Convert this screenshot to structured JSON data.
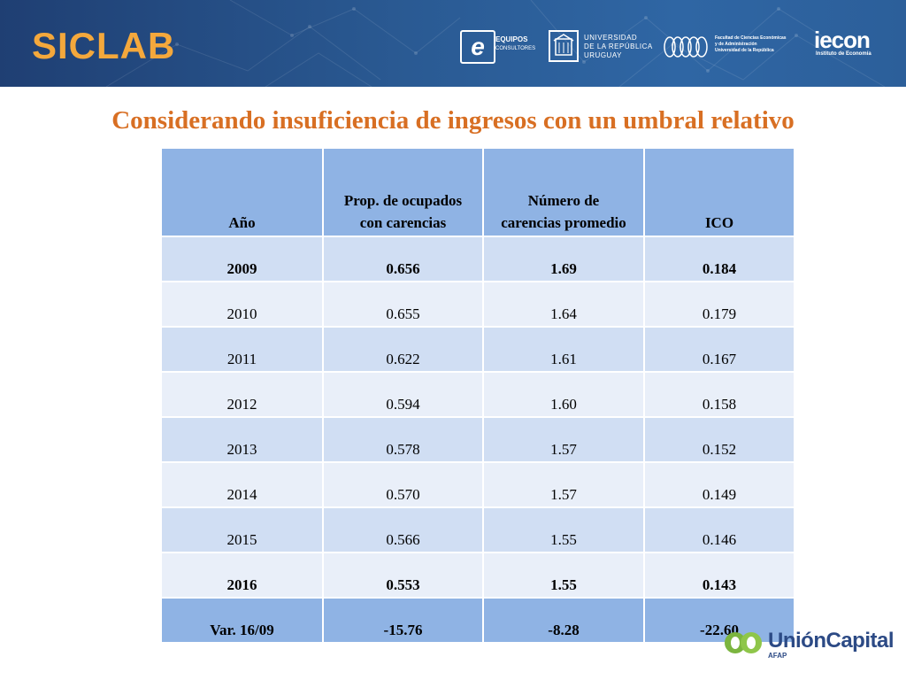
{
  "header": {
    "brand": "SICLAB",
    "logos": {
      "equipos": {
        "mark": "e",
        "line1": "EQUIPOS",
        "line2": "CONSULTORES"
      },
      "udelar": {
        "line1": "UNIVERSIDAD",
        "line2": "DE LA REPÚBLICA",
        "line3": "URUGUAY"
      },
      "ccee": {
        "line1": "Facultad de Ciencias Económicas",
        "line2": "y de Administración",
        "line3": "Universidad de la República"
      },
      "iecon": {
        "name": "iecon",
        "sub": "Instituto de Economía"
      }
    },
    "colors": {
      "banner": "#2a5a93",
      "brand": "#f4a83c"
    }
  },
  "slide": {
    "title": "Considerando insuficiencia de ingresos con un umbral relativo",
    "title_color": "#d86f23"
  },
  "table": {
    "headers": [
      "Año",
      "Prop. de ocupados con carencias",
      "Número de carencias promedio",
      "ICO"
    ],
    "header_lines": [
      [
        "Año"
      ],
      [
        "Prop. de ocupados",
        "con carencias"
      ],
      [
        "Número de",
        "carencias promedio"
      ],
      [
        "ICO"
      ]
    ],
    "rows": [
      [
        "2009",
        "0.656",
        "1.69",
        "0.184"
      ],
      [
        "2010",
        "0.655",
        "1.64",
        "0.179"
      ],
      [
        "2011",
        "0.622",
        "1.61",
        "0.167"
      ],
      [
        "2012",
        "0.594",
        "1.60",
        "0.158"
      ],
      [
        "2013",
        "0.578",
        "1.57",
        "0.152"
      ],
      [
        "2014",
        "0.570",
        "1.57",
        "0.149"
      ],
      [
        "2015",
        "0.566",
        "1.55",
        "0.146"
      ],
      [
        "2016",
        "0.553",
        "1.55",
        "0.143"
      ]
    ],
    "footer": [
      "Var. 16/09",
      "-15.76",
      "-8.28",
      "-22.60"
    ],
    "colors": {
      "header": "#8fb3e4",
      "row_dark": "#d0def3",
      "row_light": "#e9eff9"
    }
  },
  "footer_logo": {
    "name": "UniónCapital",
    "sub": "AFAP",
    "colors": {
      "green": "#7bb53f",
      "navy": "#2c4a85"
    }
  }
}
